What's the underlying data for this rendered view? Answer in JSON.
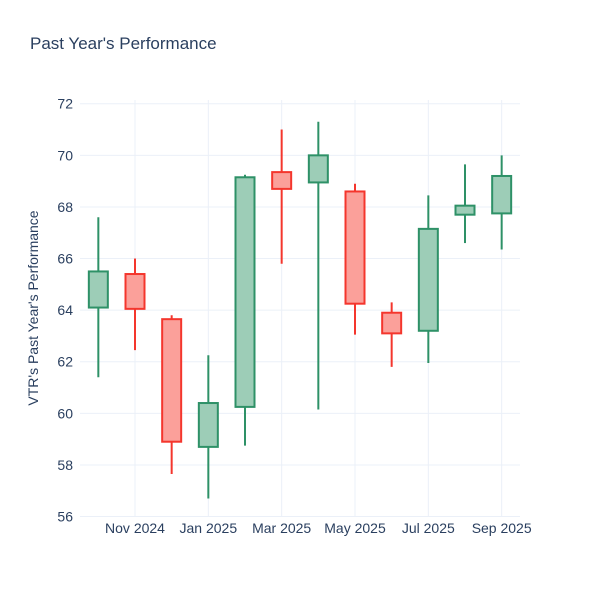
{
  "chart_data": {
    "type": "candlestick",
    "title": "Past Year's Performance",
    "xlabel": "",
    "ylabel": "VTR's Past Year's Performance",
    "legend": "none",
    "grid": "on",
    "background_color": "#ffffff",
    "grid_color": "#ebf0f8",
    "text_color": "#2a3f5f",
    "increasing_line_color": "#2e9167",
    "increasing_fill_color": "#9dcdb7",
    "decreasing_line_color": "#f4362d",
    "decreasing_fill_color": "#fba09a",
    "y_ticks": [
      56,
      58,
      60,
      62,
      64,
      66,
      68,
      70,
      72
    ],
    "ylim": [
      55.95,
      72.15
    ],
    "x_tick_labels": [
      "Nov 2024",
      "Jan 2025",
      "Mar 2025",
      "May 2025",
      "Jul 2025",
      "Sep 2025"
    ],
    "x_tick_candle_indices": [
      1,
      3,
      5,
      7,
      9,
      11
    ],
    "candles": [
      {
        "month": "Oct 2024",
        "open": 64.1,
        "high": 67.6,
        "low": 61.4,
        "close": 65.5,
        "direction": "up"
      },
      {
        "month": "Nov 2024",
        "open": 65.4,
        "high": 66.0,
        "low": 62.45,
        "close": 64.05,
        "direction": "down"
      },
      {
        "month": "Dec 2024",
        "open": 63.65,
        "high": 63.8,
        "low": 57.65,
        "close": 58.9,
        "direction": "down"
      },
      {
        "month": "Jan 2025",
        "open": 58.7,
        "high": 62.25,
        "low": 56.7,
        "close": 60.4,
        "direction": "up"
      },
      {
        "month": "Feb 2025",
        "open": 60.25,
        "high": 69.25,
        "low": 58.75,
        "close": 69.15,
        "direction": "up"
      },
      {
        "month": "Mar 2025",
        "open": 69.35,
        "high": 71.0,
        "low": 65.8,
        "close": 68.7,
        "direction": "down"
      },
      {
        "month": "Apr 2025",
        "open": 68.95,
        "high": 71.3,
        "low": 60.15,
        "close": 70.0,
        "direction": "up"
      },
      {
        "month": "May 2025",
        "open": 68.6,
        "high": 68.9,
        "low": 63.05,
        "close": 64.25,
        "direction": "down"
      },
      {
        "month": "Jun 2025",
        "open": 63.9,
        "high": 64.3,
        "low": 61.8,
        "close": 63.1,
        "direction": "down"
      },
      {
        "month": "Jul 2025",
        "open": 63.2,
        "high": 68.45,
        "low": 61.95,
        "close": 67.15,
        "direction": "up"
      },
      {
        "month": "Aug 2025",
        "open": 67.7,
        "high": 69.65,
        "low": 66.6,
        "close": 68.05,
        "direction": "up"
      },
      {
        "month": "Sep 2025",
        "open": 67.75,
        "high": 70.0,
        "low": 66.35,
        "close": 69.2,
        "direction": "up"
      }
    ]
  }
}
